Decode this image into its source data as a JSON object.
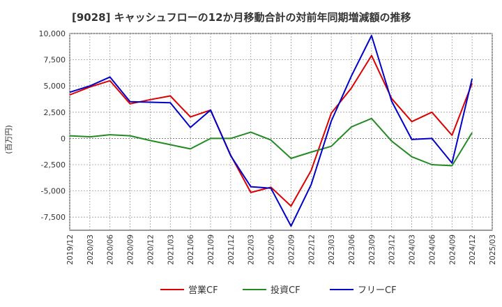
{
  "chart_data": {
    "type": "line",
    "title": "[9028]  キャッシュフローの12か月移動合計の対前年同期増減額の推移",
    "xlabel": "",
    "ylabel": "(百万円)",
    "ylim": [
      -8750,
      10000
    ],
    "yticks": [
      10000,
      7500,
      5000,
      2500,
      0,
      -2500,
      -5000,
      -7500
    ],
    "ytick_labels": [
      "10,000",
      "7,500",
      "5,000",
      "2,500",
      "0",
      "-2,500",
      "-5,000",
      "-7,500"
    ],
    "categories": [
      "2019/12",
      "2020/03",
      "2020/06",
      "2020/09",
      "2020/12",
      "2021/03",
      "2021/06",
      "2021/09",
      "2021/12",
      "2022/03",
      "2022/06",
      "2022/09",
      "2022/12",
      "2023/03",
      "2023/06",
      "2023/09",
      "2023/12",
      "2024/03",
      "2024/06",
      "2024/09",
      "2024/12",
      "2025/03"
    ],
    "grid": true,
    "legend_position": "bottom",
    "series": [
      {
        "name": "営業CF",
        "color": "#dd0000",
        "values": [
          4150,
          4900,
          5500,
          3300,
          3700,
          4050,
          2050,
          2700,
          -1600,
          -5150,
          -4650,
          -6450,
          -3050,
          2400,
          4800,
          7900,
          3800,
          1600,
          2500,
          300,
          5250,
          null
        ]
      },
      {
        "name": "投資CF",
        "color": "#228b22",
        "values": [
          250,
          150,
          350,
          250,
          -200,
          -600,
          -1000,
          0,
          0,
          600,
          -150,
          -1900,
          -1300,
          -750,
          1100,
          1900,
          -250,
          -1750,
          -2500,
          -2600,
          550,
          null
        ]
      },
      {
        "name": "フリーCF",
        "color": "#0000cc",
        "values": [
          4400,
          5000,
          5850,
          3500,
          3450,
          3400,
          1050,
          2700,
          -1650,
          -4600,
          -4750,
          -8350,
          -4400,
          1650,
          5950,
          9800,
          3550,
          -100,
          0,
          -2350,
          5700,
          null
        ]
      }
    ]
  }
}
